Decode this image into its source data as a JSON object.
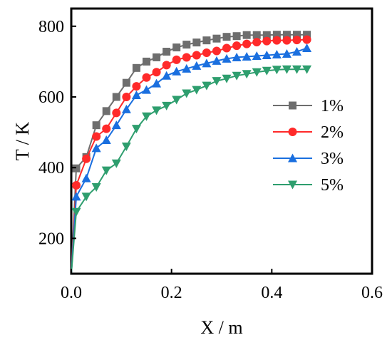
{
  "chart_data": {
    "type": "line",
    "title": "",
    "xlabel": "X / m",
    "ylabel": "T / K",
    "xlim": [
      0.0,
      0.6
    ],
    "ylim": [
      100,
      850
    ],
    "xticks": [
      0.0,
      0.2,
      0.4,
      0.6
    ],
    "xtick_labels": [
      "0.0",
      "0.2",
      "0.4",
      "0.6"
    ],
    "yticks": [
      200,
      400,
      600,
      800
    ],
    "ytick_labels": [
      "200",
      "400",
      "600",
      "800"
    ],
    "grid": false,
    "legend_position": "right",
    "series": [
      {
        "name": "1%",
        "color": "#6e6e6e",
        "marker": "square",
        "x": [
          0.0,
          0.01,
          0.03,
          0.05,
          0.07,
          0.09,
          0.11,
          0.13,
          0.15,
          0.17,
          0.19,
          0.21,
          0.23,
          0.25,
          0.27,
          0.29,
          0.31,
          0.33,
          0.35,
          0.37,
          0.39,
          0.41,
          0.43,
          0.45,
          0.47
        ],
        "y": [
          100,
          398,
          430,
          520,
          560,
          600,
          640,
          682,
          700,
          712,
          728,
          740,
          748,
          754,
          760,
          765,
          770,
          772,
          775,
          775,
          775,
          776,
          776,
          776,
          776
        ]
      },
      {
        "name": "2%",
        "color": "#ff2a2a",
        "marker": "circle",
        "x": [
          0.0,
          0.01,
          0.03,
          0.05,
          0.07,
          0.09,
          0.11,
          0.13,
          0.15,
          0.17,
          0.19,
          0.21,
          0.23,
          0.25,
          0.27,
          0.29,
          0.31,
          0.33,
          0.35,
          0.37,
          0.39,
          0.41,
          0.43,
          0.45,
          0.47
        ],
        "y": [
          100,
          350,
          425,
          488,
          510,
          555,
          600,
          630,
          655,
          670,
          690,
          705,
          712,
          718,
          725,
          730,
          738,
          745,
          750,
          755,
          758,
          760,
          760,
          761,
          762
        ]
      },
      {
        "name": "3%",
        "color": "#1a6fdf",
        "marker": "triangle-up",
        "x": [
          0.0,
          0.01,
          0.03,
          0.05,
          0.07,
          0.09,
          0.11,
          0.13,
          0.15,
          0.17,
          0.19,
          0.21,
          0.23,
          0.25,
          0.27,
          0.29,
          0.31,
          0.33,
          0.35,
          0.37,
          0.39,
          0.41,
          0.43,
          0.45,
          0.47
        ],
        "y": [
          100,
          318,
          370,
          455,
          478,
          520,
          565,
          605,
          620,
          638,
          660,
          672,
          680,
          688,
          695,
          702,
          708,
          712,
          714,
          716,
          718,
          720,
          722,
          728,
          738
        ]
      },
      {
        "name": "5%",
        "color": "#2e9e6e",
        "marker": "triangle-down",
        "x": [
          0.0,
          0.01,
          0.03,
          0.05,
          0.07,
          0.09,
          0.11,
          0.13,
          0.15,
          0.17,
          0.19,
          0.21,
          0.23,
          0.25,
          0.27,
          0.29,
          0.31,
          0.33,
          0.35,
          0.37,
          0.39,
          0.41,
          0.43,
          0.45,
          0.47
        ],
        "y": [
          100,
          275,
          318,
          345,
          392,
          412,
          460,
          510,
          545,
          562,
          575,
          592,
          610,
          620,
          632,
          645,
          652,
          660,
          665,
          670,
          674,
          677,
          678,
          678,
          678
        ]
      }
    ]
  }
}
